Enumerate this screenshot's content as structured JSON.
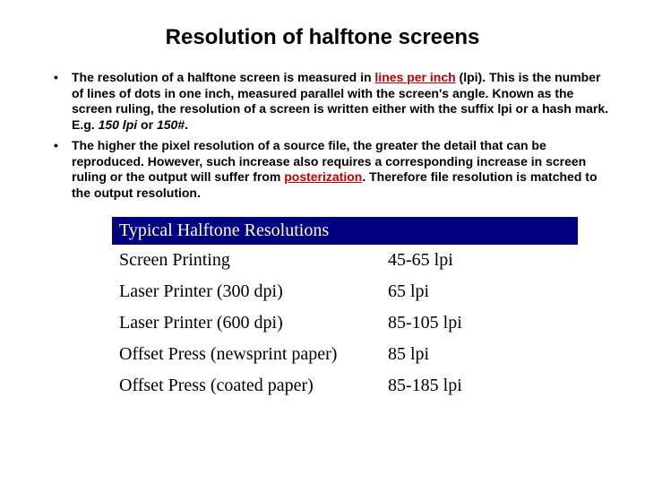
{
  "title": "Resolution of halftone screens",
  "bullets": {
    "b1": {
      "pre": "The resolution of a halftone screen is measured in ",
      "link": "lines per inch",
      "post_link": " (lpi). This is the number of lines of dots in one inch, measured parallel with the screen's angle. Known as the ",
      "bold_term": "screen ruling",
      "after_bold": ", the resolution of a screen is written either with the suffix lpi or a hash mark. E.g. ",
      "ex1": "150 lpi",
      "mid": " or ",
      "ex2": "150#",
      "end": "."
    },
    "b2": {
      "pre": "The higher the pixel resolution of a source file, the greater the detail that can be reproduced. However, such increase also requires a corresponding increase in screen ruling or the output will suffer from ",
      "link": "posterization",
      "post": ". Therefore file resolution is matched to the output resolution."
    }
  },
  "table": {
    "header": "Typical Halftone Resolutions",
    "rows": [
      {
        "label": "Screen Printing",
        "value": "45-65 lpi"
      },
      {
        "label": "Laser Printer (300 dpi)",
        "value": "65 lpi"
      },
      {
        "label": "Laser Printer (600 dpi)",
        "value": "85-105 lpi"
      },
      {
        "label": "Offset Press (newsprint paper)",
        "value": "85 lpi"
      },
      {
        "label": "Offset Press (coated paper)",
        "value": "85-185 lpi"
      }
    ]
  },
  "colors": {
    "link": "#c00000",
    "table_header_bg": "#000080",
    "table_header_fg": "#ffffff",
    "text": "#000000",
    "background": "#ffffff"
  }
}
